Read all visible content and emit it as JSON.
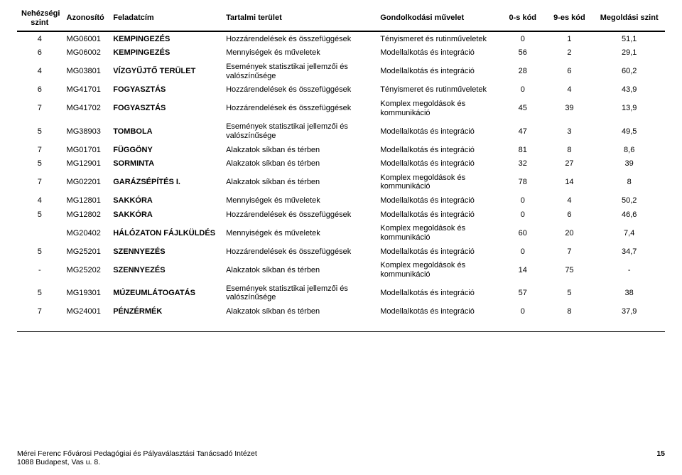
{
  "columns": [
    "Nehézségi szint",
    "Azonosító",
    "Feladatcím",
    "Tartalmi terület",
    "Gondolkodási művelet",
    "0-s kód",
    "9-es kód",
    "Megoldási szint"
  ],
  "rows": [
    {
      "level": "4",
      "id": "MG06001",
      "title": "KEMPINGEZÉS",
      "area": "Hozzárendelések és összefüggések",
      "op": "Tényismeret és rutinműveletek",
      "c0": "0",
      "c9": "1",
      "solve": "51,1"
    },
    {
      "level": "6",
      "id": "MG06002",
      "title": "KEMPINGEZÉS",
      "area": "Mennyiségek és műveletek",
      "op": "Modellalkotás és integráció",
      "c0": "56",
      "c9": "2",
      "solve": "29,1"
    },
    {
      "level": "4",
      "id": "MG03801",
      "title": "VÍZGYŰJTŐ TERÜLET",
      "area": "Események statisztikai jellemzői és valószínűsége",
      "op": "Modellalkotás és integráció",
      "c0": "28",
      "c9": "6",
      "solve": "60,2"
    },
    {
      "level": "6",
      "id": "MG41701",
      "title": "FOGYASZTÁS",
      "area": "Hozzárendelések és összefüggések",
      "op": "Tényismeret és rutinműveletek",
      "c0": "0",
      "c9": "4",
      "solve": "43,9"
    },
    {
      "level": "7",
      "id": "MG41702",
      "title": "FOGYASZTÁS",
      "area": "Hozzárendelések és összefüggések",
      "op": "Komplex megoldások és kommunikáció",
      "c0": "45",
      "c9": "39",
      "solve": "13,9"
    },
    {
      "level": "5",
      "id": "MG38903",
      "title": "TOMBOLA",
      "area": "Események statisztikai jellemzői és valószínűsége",
      "op": "Modellalkotás és integráció",
      "c0": "47",
      "c9": "3",
      "solve": "49,5"
    },
    {
      "level": "7",
      "id": "MG01701",
      "title": "FÜGGÖNY",
      "area": "Alakzatok síkban és térben",
      "op": "Modellalkotás és integráció",
      "c0": "81",
      "c9": "8",
      "solve": "8,6"
    },
    {
      "level": "5",
      "id": "MG12901",
      "title": "SORMINTA",
      "area": "Alakzatok síkban és térben",
      "op": "Modellalkotás és integráció",
      "c0": "32",
      "c9": "27",
      "solve": "39"
    },
    {
      "level": "7",
      "id": "MG02201",
      "title": "GARÁZSÉPÍTÉS I.",
      "area": "Alakzatok síkban és térben",
      "op": "Komplex megoldások és kommunikáció",
      "c0": "78",
      "c9": "14",
      "solve": "8"
    },
    {
      "level": "4",
      "id": "MG12801",
      "title": "SAKKÓRA",
      "area": "Mennyiségek és műveletek",
      "op": "Modellalkotás és integráció",
      "c0": "0",
      "c9": "4",
      "solve": "50,2"
    },
    {
      "level": "5",
      "id": "MG12802",
      "title": "SAKKÓRA",
      "area": "Hozzárendelések és összefüggések",
      "op": "Modellalkotás és integráció",
      "c0": "0",
      "c9": "6",
      "solve": "46,6"
    },
    {
      "level": "",
      "id": "MG20402",
      "title": "HÁLÓZATON FÁJLKÜLDÉS",
      "area": "Mennyiségek és műveletek",
      "op": "Komplex megoldások és kommunikáció",
      "c0": "60",
      "c9": "20",
      "solve": "7,4"
    },
    {
      "level": "5",
      "id": "MG25201",
      "title": "SZENNYEZÉS",
      "area": "Hozzárendelések és összefüggések",
      "op": "Modellalkotás és integráció",
      "c0": "0",
      "c9": "7",
      "solve": "34,7"
    },
    {
      "level": "-",
      "id": "MG25202",
      "title": "SZENNYEZÉS",
      "area": "Alakzatok síkban és térben",
      "op": "Komplex megoldások és kommunikáció",
      "c0": "14",
      "c9": "75",
      "solve": "-"
    },
    {
      "level": "5",
      "id": "MG19301",
      "title": "MÚZEUMLÁTOGATÁS",
      "area": "Események statisztikai jellemzői és valószínűsége",
      "op": "Modellalkotás és integráció",
      "c0": "57",
      "c9": "5",
      "solve": "38"
    },
    {
      "level": "7",
      "id": "MG24001",
      "title": "PÉNZÉRMÉK",
      "area": "Alakzatok síkban és térben",
      "op": "Modellalkotás és integráció",
      "c0": "0",
      "c9": "8",
      "solve": "37,9"
    }
  ],
  "footer": {
    "line1": "Mérei Ferenc Fővárosi Pedagógiai és Pályaválasztási Tanácsadó Intézet",
    "line2": "1088 Budapest, Vas u. 8.",
    "page": "15"
  }
}
